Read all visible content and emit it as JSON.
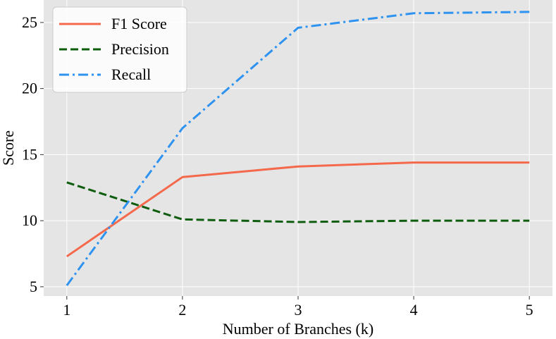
{
  "chart_data": {
    "type": "line",
    "title": "",
    "xlabel": "Number of Branches (k)",
    "ylabel": "Score",
    "x": [
      1,
      2,
      3,
      4,
      5
    ],
    "xticks": [
      "1",
      "2",
      "3",
      "4",
      "5"
    ],
    "yticks": [
      "5",
      "10",
      "15",
      "20",
      "25"
    ],
    "xlim": [
      0.8,
      5.2
    ],
    "ylim": [
      4.3,
      26.7
    ],
    "grid": true,
    "legend_position": "top-left",
    "series": [
      {
        "name": "F1 Score",
        "values": [
          7.3,
          13.3,
          14.1,
          14.4,
          14.4
        ],
        "color": "#f4694b",
        "style": "solid"
      },
      {
        "name": "Precision",
        "values": [
          12.9,
          10.1,
          9.9,
          10.0,
          10.0
        ],
        "color": "#0e5c0e",
        "style": "dashed"
      },
      {
        "name": "Recall",
        "values": [
          5.1,
          17.0,
          24.6,
          25.7,
          25.8
        ],
        "color": "#2e93f0",
        "style": "dashdot"
      }
    ]
  }
}
